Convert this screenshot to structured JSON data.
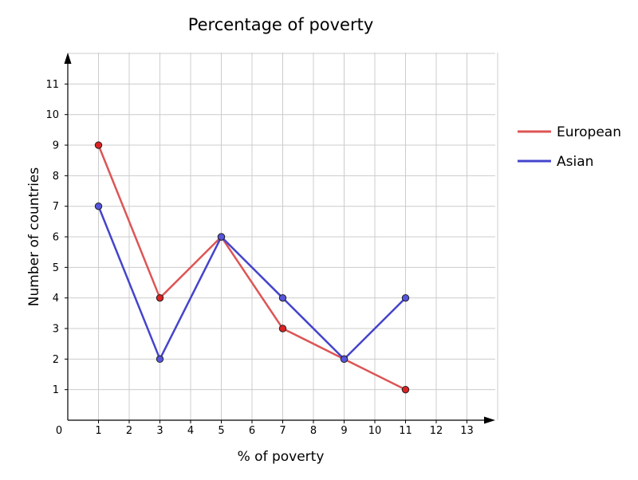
{
  "chart_data": {
    "type": "line",
    "title": "Percentage of poverty",
    "xlabel": "% of poverty",
    "ylabel": "Number of countries",
    "xlim": [
      0,
      14
    ],
    "ylim": [
      0,
      12
    ],
    "x_ticks": [
      1,
      2,
      3,
      4,
      5,
      6,
      7,
      8,
      9,
      10,
      11,
      12,
      13
    ],
    "y_ticks": [
      1,
      2,
      3,
      4,
      5,
      6,
      7,
      8,
      9,
      10,
      11
    ],
    "origin_label": "0",
    "grid": true,
    "legend_position": "right",
    "x": [
      1,
      3,
      5,
      7,
      9,
      11
    ],
    "series": [
      {
        "name": "European",
        "color": "#dd5555",
        "marker_color": "#dd2222",
        "values": [
          9,
          4,
          6,
          3,
          2,
          1
        ]
      },
      {
        "name": "Asian",
        "color": "#4444cc",
        "marker_color": "#5555dd",
        "values": [
          7,
          2,
          6,
          4,
          2,
          4
        ]
      }
    ]
  }
}
